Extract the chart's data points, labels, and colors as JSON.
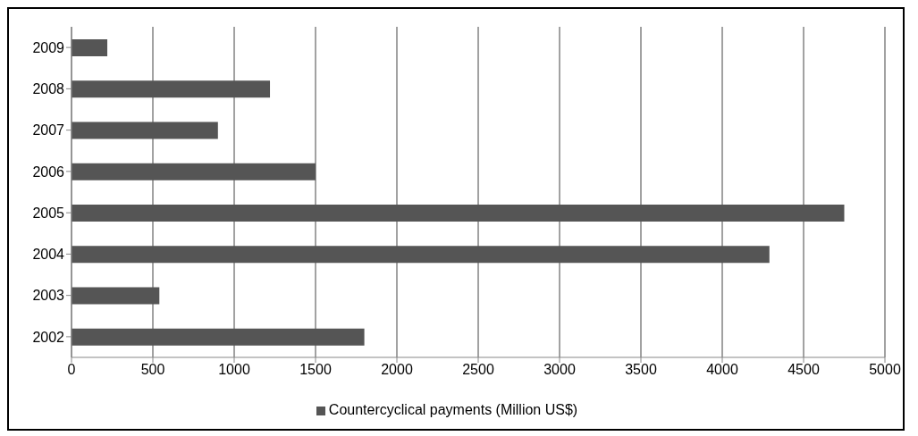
{
  "chart_data": {
    "type": "bar",
    "orientation": "horizontal",
    "categories": [
      "2009",
      "2008",
      "2007",
      "2006",
      "2005",
      "2004",
      "2003",
      "2002"
    ],
    "series": [
      {
        "name": "Countercyclical payments (Million US$)",
        "color": "#555555",
        "values": [
          220,
          1220,
          900,
          1500,
          4750,
          4290,
          540,
          1800
        ]
      }
    ],
    "xlim": [
      0,
      5000
    ],
    "xticks": [
      0,
      500,
      1000,
      1500,
      2000,
      2500,
      3000,
      3500,
      4000,
      4500,
      5000
    ],
    "grid": "x",
    "legend": "bottom"
  }
}
